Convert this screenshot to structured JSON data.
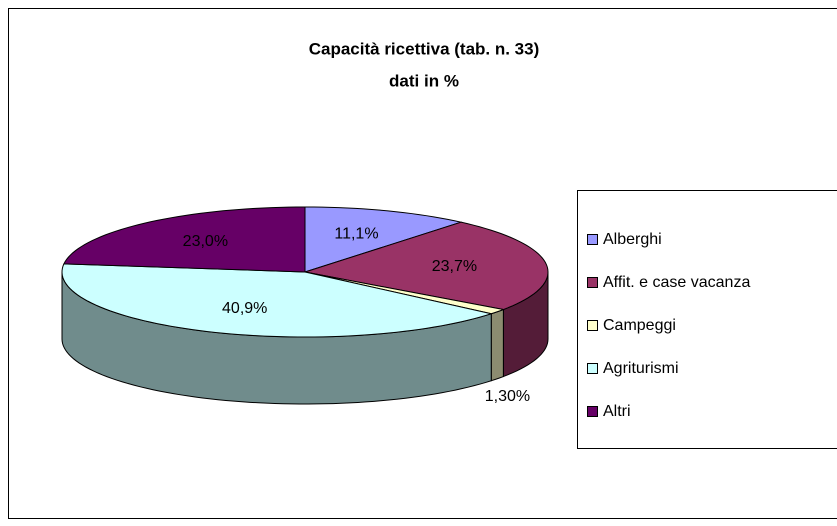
{
  "chart_data": {
    "type": "pie3d",
    "title": "Capacità ricettiva (tab. n. 33)",
    "subtitle": "dati in %",
    "categories": [
      "Alberghi",
      "Affit. e case vacanza",
      "Campeggi",
      "Agriturismi",
      "Altri"
    ],
    "values": [
      11.1,
      23.7,
      1.3,
      40.9,
      23.0
    ],
    "value_labels": [
      "11,1%",
      "23,7%",
      "1,30%",
      "40,9%",
      "23,0%"
    ],
    "colors": [
      "#9999ff",
      "#993366",
      "#ffffcc",
      "#ccffff",
      "#660066"
    ],
    "legend": "right"
  }
}
